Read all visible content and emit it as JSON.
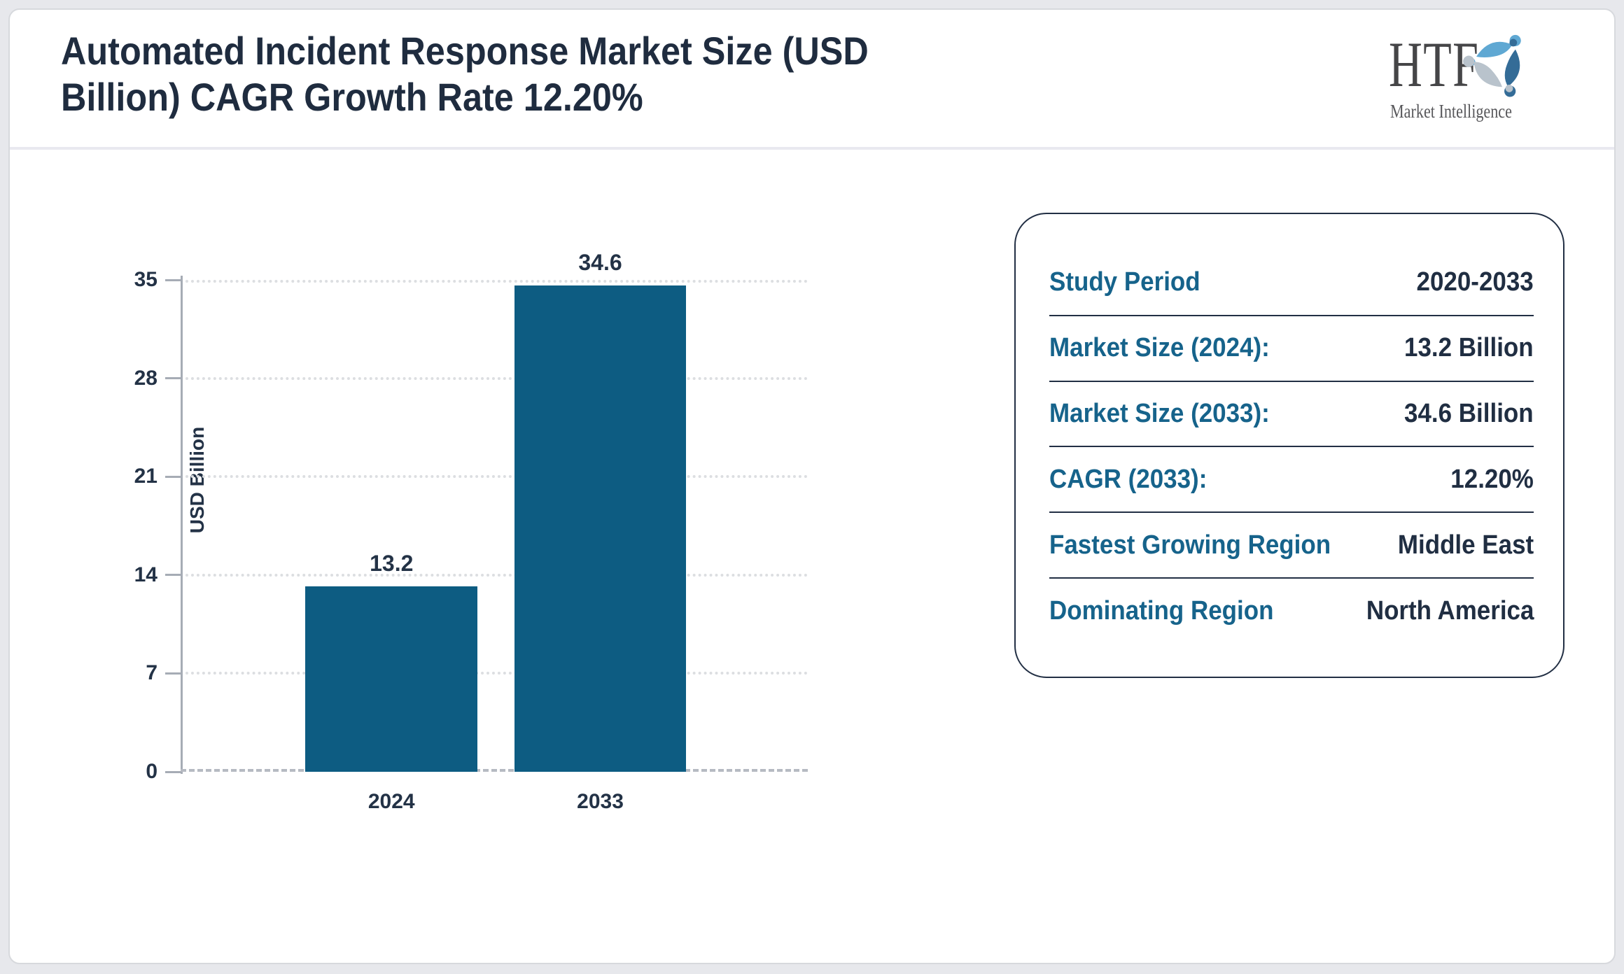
{
  "header": {
    "title": "Automated Incident Response Market Size (USD Billion) CAGR Growth Rate 12.20%",
    "title_line1": "Automated Incident Response Market Size (USD",
    "title_line2": "Billion) CAGR Growth Rate 12.20%"
  },
  "logo": {
    "abbr": "HTF",
    "tagline": "Market Intelligence",
    "colors": {
      "text": "#454547",
      "figure_light_blue": "#5fa8d3",
      "figure_steel_blue": "#346c97",
      "figure_gray": "#b9c3cc"
    }
  },
  "chart_data": {
    "type": "bar",
    "title": "Automated Incident Response Market Size (USD Billion) CAGR Growth Rate 12.20%",
    "categories": [
      "2024",
      "2033"
    ],
    "values": [
      13.2,
      34.6
    ],
    "value_labels": [
      "13.2",
      "34.6"
    ],
    "xlabel": "",
    "ylabel": "USD Billion",
    "ylim": [
      0,
      35
    ],
    "yticks": [
      0,
      7,
      14,
      21,
      28,
      35
    ],
    "bar_color": "#0d5c82",
    "grid": "horizontal dotted",
    "legend": "none"
  },
  "panel": {
    "rows": [
      {
        "label": "Study Period",
        "value": "2020-2033"
      },
      {
        "label": "Market Size (2024):",
        "value": "13.2 Billion"
      },
      {
        "label": "Market Size (2033):",
        "value": "34.6 Billion"
      },
      {
        "label": "CAGR (2033):",
        "value": "12.20%"
      },
      {
        "label": "Fastest Growing Region",
        "value": "Middle East"
      },
      {
        "label": "Dominating Region",
        "value": "North America"
      }
    ]
  },
  "colors": {
    "background": "#e7e8ec",
    "card": "#ffffff",
    "title_text": "#1f2c3f",
    "accent_teal": "#16638b",
    "value_navy": "#202e42",
    "bar_fill": "#0d5c82",
    "axis_gray": "#a6acb5",
    "gridline_gray": "#dcdee1"
  }
}
